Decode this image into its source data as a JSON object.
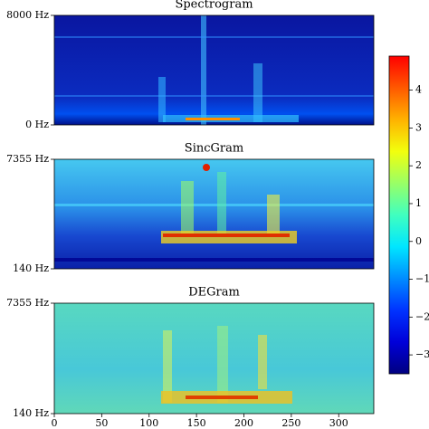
{
  "chart_data": [
    {
      "type": "heatmap",
      "title": "Spectrogram",
      "xlim": [
        0,
        337
      ],
      "ylim": [
        0,
        8000
      ],
      "yticks": [
        {
          "value": 0,
          "label": "0 Hz"
        },
        {
          "value": 8000,
          "label": "8000 Hz"
        }
      ]
    },
    {
      "type": "heatmap",
      "title": "SincGram",
      "xlim": [
        0,
        337
      ],
      "ylim": [
        140,
        7355
      ],
      "yticks": [
        {
          "value": 140,
          "label": "140 Hz"
        },
        {
          "value": 7355,
          "label": "7355 Hz"
        }
      ]
    },
    {
      "type": "heatmap",
      "title": "DEGram",
      "xlim": [
        0,
        337
      ],
      "ylim": [
        140,
        7355
      ],
      "yticks": [
        {
          "value": 140,
          "label": "140 Hz"
        },
        {
          "value": 7355,
          "label": "7355 Hz"
        }
      ],
      "xticks": [
        0,
        50,
        100,
        150,
        200,
        250,
        300
      ]
    },
    {
      "type": "colorbar",
      "colormap": "jet",
      "clim": [
        -3.5,
        4.9
      ],
      "ticks": [
        {
          "value": -3,
          "label": "−3"
        },
        {
          "value": -2,
          "label": "−2"
        },
        {
          "value": -1,
          "label": "−1"
        },
        0,
        1,
        2,
        3,
        4
      ]
    }
  ]
}
